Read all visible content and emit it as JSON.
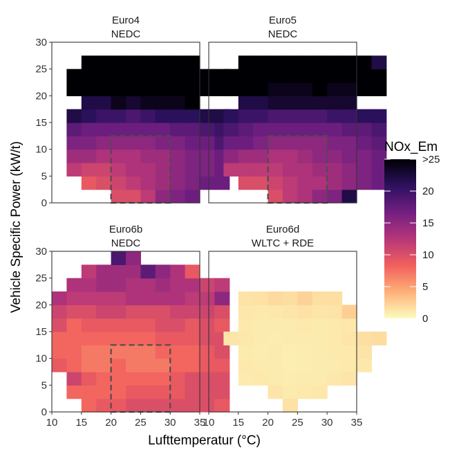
{
  "chart_data": {
    "type": "heatmap",
    "xlabel": "Lufttemperatur (°C)",
    "ylabel": "Vehicle Specific Power (kW/t)",
    "xlim": [
      10,
      35
    ],
    "ylim": [
      0,
      30
    ],
    "x_ticks": [
      10,
      15,
      20,
      25,
      30,
      35
    ],
    "y_ticks": [
      0,
      5,
      10,
      15,
      20,
      25,
      30
    ],
    "x_tick_labels": [
      "10",
      "15",
      "20",
      "25",
      "30",
      "35"
    ],
    "y_tick_labels": [
      "0",
      "5",
      "10",
      "15",
      "20",
      "25",
      "30"
    ],
    "cell_width": 2.5,
    "cell_height": 2.5,
    "grid": false,
    "legend": {
      "title": "NOx_Em",
      "placement": "right",
      "min": 0,
      "max": 25,
      "tick_values": [
        0,
        5,
        10,
        15,
        20,
        25
      ],
      "tick_labels": [
        "0",
        "5",
        "10",
        "15",
        "20",
        ">25"
      ],
      "palette": [
        "#fcfdbf",
        "#feb078",
        "#f1605d",
        "#b63679",
        "#721f81",
        "#2d1160",
        "#000004"
      ]
    },
    "reference_box": {
      "x_range": [
        20,
        30
      ],
      "y_range": [
        0,
        12.5
      ],
      "style": "dashed"
    },
    "panels": [
      {
        "title": [
          "Euro4",
          "NEDC"
        ],
        "rows": [
          {
            "y": 1.25,
            "x0": 20,
            "values": [
              10,
              10,
              12,
              15,
              16,
              17
            ]
          },
          {
            "y": 3.75,
            "x0": 15,
            "values": [
              9,
              10,
              11,
              12,
              13,
              14,
              15,
              16,
              17,
              17
            ]
          },
          {
            "y": 6.25,
            "x0": 12.5,
            "values": [
              12,
              11,
              11,
              12,
              13,
              13,
              14,
              15,
              16,
              16,
              17
            ]
          },
          {
            "y": 8.75,
            "x0": 12.5,
            "values": [
              14,
              14,
              13,
              13,
              13,
              14,
              14,
              15,
              16,
              16,
              17
            ]
          },
          {
            "y": 11.25,
            "x0": 12.5,
            "values": [
              16,
              16,
              15,
              15,
              15,
              15,
              16,
              16,
              17,
              17,
              19
            ]
          },
          {
            "y": 13.75,
            "x0": 12.5,
            "values": [
              18,
              17,
              17,
              17,
              17,
              17,
              17,
              18,
              18,
              19,
              20
            ]
          },
          {
            "y": 16.25,
            "x0": 12.5,
            "values": [
              22,
              21,
              20,
              20,
              19,
              20,
              21,
              21,
              21,
              22,
              22
            ]
          },
          {
            "y": 18.75,
            "x0": 15,
            "values": [
              22,
              22,
              24,
              23,
              24,
              24,
              24,
              25
            ]
          },
          {
            "y": 21.25,
            "x0": 12.5,
            "values": [
              25,
              25,
              25,
              25,
              25,
              25,
              25,
              25,
              25,
              25,
              25
            ]
          },
          {
            "y": 23.75,
            "x0": 12.5,
            "values": [
              25,
              25,
              25,
              25,
              25,
              25,
              25,
              25,
              25,
              25,
              25
            ]
          },
          {
            "y": 26.25,
            "x0": 15,
            "values": [
              25,
              25,
              25,
              25,
              25,
              25,
              25,
              25
            ]
          }
        ]
      },
      {
        "title": [
          "Euro5",
          "NEDC"
        ],
        "rows": [
          {
            "y": 1.25,
            "x0": 20,
            "values": [
              10,
              12,
              13,
              15,
              16,
              22
            ]
          },
          {
            "y": 3.75,
            "x0": 15,
            "values": [
              10,
              10,
              11,
              12,
              13,
              13,
              14,
              15,
              16,
              17
            ]
          },
          {
            "y": 6.25,
            "x0": 12.5,
            "values": [
              12,
              12,
              12,
              12,
              13,
              13,
              14,
              14,
              15,
              16,
              17
            ]
          },
          {
            "y": 8.75,
            "x0": 12.5,
            "values": [
              15,
              14,
              14,
              13,
              13,
              14,
              15,
              15,
              16,
              16,
              17
            ]
          },
          {
            "y": 11.25,
            "x0": 12.5,
            "values": [
              17,
              17,
              16,
              15,
              15,
              15,
              15,
              16,
              16,
              17,
              18
            ]
          },
          {
            "y": 13.75,
            "x0": 12.5,
            "values": [
              19,
              18,
              17,
              17,
              17,
              17,
              17,
              17,
              18,
              18,
              19
            ]
          },
          {
            "y": 16.25,
            "x0": 12.5,
            "values": [
              21,
              20,
              20,
              19,
              19,
              19,
              19,
              20,
              20,
              21,
              21
            ]
          },
          {
            "y": 18.75,
            "x0": 15,
            "values": [
              22,
              22,
              23,
              23,
              23,
              23,
              23,
              23
            ]
          },
          {
            "y": 21.25,
            "x0": 12.5,
            "values": [
              25,
              25,
              25,
              24,
              24,
              24,
              25,
              24,
              24,
              25,
              25
            ]
          },
          {
            "y": 23.75,
            "x0": 12.5,
            "values": [
              25,
              25,
              25,
              25,
              25,
              25,
              25,
              25,
              25,
              25,
              25
            ]
          },
          {
            "y": 26.25,
            "x0": 15,
            "values": [
              25,
              25,
              25,
              25,
              25,
              25,
              25,
              25,
              25,
              22
            ]
          }
        ]
      },
      {
        "title": [
          "Euro6b",
          "NEDC"
        ],
        "rows": [
          {
            "y": 1.25,
            "x0": 15,
            "values": [
              8,
              9,
              9,
              10,
              10,
              10,
              10,
              10,
              10,
              9
            ]
          },
          {
            "y": 3.75,
            "x0": 12.5,
            "values": [
              8,
              8,
              8,
              8,
              9,
              9,
              9,
              9,
              10,
              10,
              10
            ]
          },
          {
            "y": 6.25,
            "x0": 12.5,
            "values": [
              11,
              9,
              8,
              8,
              8,
              8,
              8,
              9,
              10,
              10,
              10
            ]
          },
          {
            "y": 8.75,
            "x0": 10,
            "values": [
              9,
              8,
              7,
              7,
              8,
              7,
              7,
              7,
              8,
              8,
              9,
              9
            ]
          },
          {
            "y": 11.25,
            "x0": 10,
            "values": [
              8,
              8,
              7,
              7,
              7,
              7,
              7,
              8,
              8,
              8,
              9,
              10
            ]
          },
          {
            "y": 13.75,
            "x0": 10,
            "values": [
              8,
              8,
              8,
              8,
              8,
              8,
              8,
              9,
              9,
              9,
              10,
              10
            ]
          },
          {
            "y": 16.25,
            "x0": 10,
            "values": [
              10,
              8,
              9,
              9,
              9,
              9,
              9,
              10,
              10,
              9,
              10,
              9
            ]
          },
          {
            "y": 18.75,
            "x0": 10,
            "values": [
              11,
              10,
              10,
              11,
              11,
              10,
              10,
              10,
              11,
              11,
              11,
              10
            ]
          },
          {
            "y": 21.25,
            "x0": 10,
            "values": [
              13,
              12,
              12,
              12,
              12,
              13,
              13,
              13,
              13,
              12,
              12,
              15
            ]
          },
          {
            "y": 23.75,
            "x0": 12.5,
            "values": [
              13,
              13,
              14,
              14,
              13,
              13,
              14,
              13,
              13,
              11,
              12
            ]
          },
          {
            "y": 26.25,
            "x0": 15,
            "values": [
              12,
              14,
              14,
              14,
              18,
              15,
              13,
              9
            ]
          },
          {
            "y": 28.75,
            "x0": 20,
            "values": [
              19,
              15
            ]
          }
        ]
      },
      {
        "title": [
          "Euro6d",
          "WLTC + RDE"
        ],
        "rows": [
          {
            "y": 1.25,
            "x0": 22.5,
            "values": [
              1.5
            ]
          },
          {
            "y": 3.75,
            "x0": 20,
            "values": [
              1.3,
              1.0,
              1.1,
              1.2
            ]
          },
          {
            "y": 6.25,
            "x0": 15,
            "values": [
              1.0,
              1.1,
              1.0,
              0.9,
              1.0,
              1.0,
              1.2,
              1.3
            ]
          },
          {
            "y": 8.75,
            "x0": 15,
            "values": [
              1.1,
              1.0,
              1.0,
              0.8,
              0.9,
              1.0,
              1.0,
              1.1,
              1.2
            ]
          },
          {
            "y": 11.25,
            "x0": 15,
            "values": [
              1.0,
              0.9,
              1.0,
              0.8,
              0.9,
              1.0,
              1.1,
              1.1,
              1.4
            ]
          },
          {
            "y": 13.75,
            "x0": 12.5,
            "values": [
              1.3,
              1.2,
              1.0,
              0.9,
              1.0,
              1.0,
              1.0,
              1.1,
              1.3,
              1.6,
              1.8
            ]
          },
          {
            "y": 16.25,
            "x0": 15,
            "values": [
              1.1,
              1.0,
              1.0,
              1.0,
              1.1,
              1.0,
              1.1,
              1.2
            ]
          },
          {
            "y": 18.75,
            "x0": 15,
            "values": [
              1.2,
              1.1,
              1.2,
              1.3,
              1.5,
              1.3,
              1.4,
              2.5
            ]
          },
          {
            "y": 21.25,
            "x0": 15,
            "values": [
              1.4,
              1.5,
              1.9,
              1.7,
              2.3,
              1.6,
              1.6
            ]
          }
        ]
      }
    ]
  }
}
